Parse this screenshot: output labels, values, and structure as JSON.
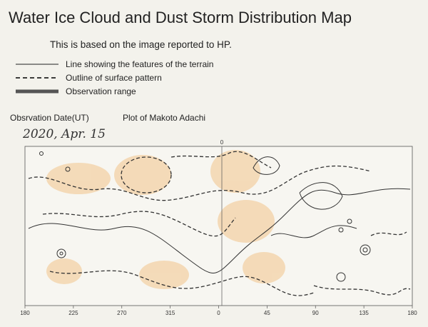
{
  "header": {
    "title": "Water Ice Cloud and Dust Storm Distribution Map",
    "subtitle": "This is based on the image reported to HP."
  },
  "legend": [
    {
      "label": "Line showing the features of the terrain",
      "style": "solid"
    },
    {
      "label": "Outline of surface pattern",
      "style": "dashed"
    },
    {
      "label": "Observation range",
      "style": "thick"
    }
  ],
  "observation": {
    "date_label": "Obsrvation Date(UT)",
    "plot_label": "Plot of Makoto Adachi",
    "date": "2020, Apr. 15"
  },
  "map": {
    "top_label": 0,
    "x_labels": [
      180,
      225,
      270,
      315,
      0,
      45,
      90,
      135,
      180
    ]
  }
}
